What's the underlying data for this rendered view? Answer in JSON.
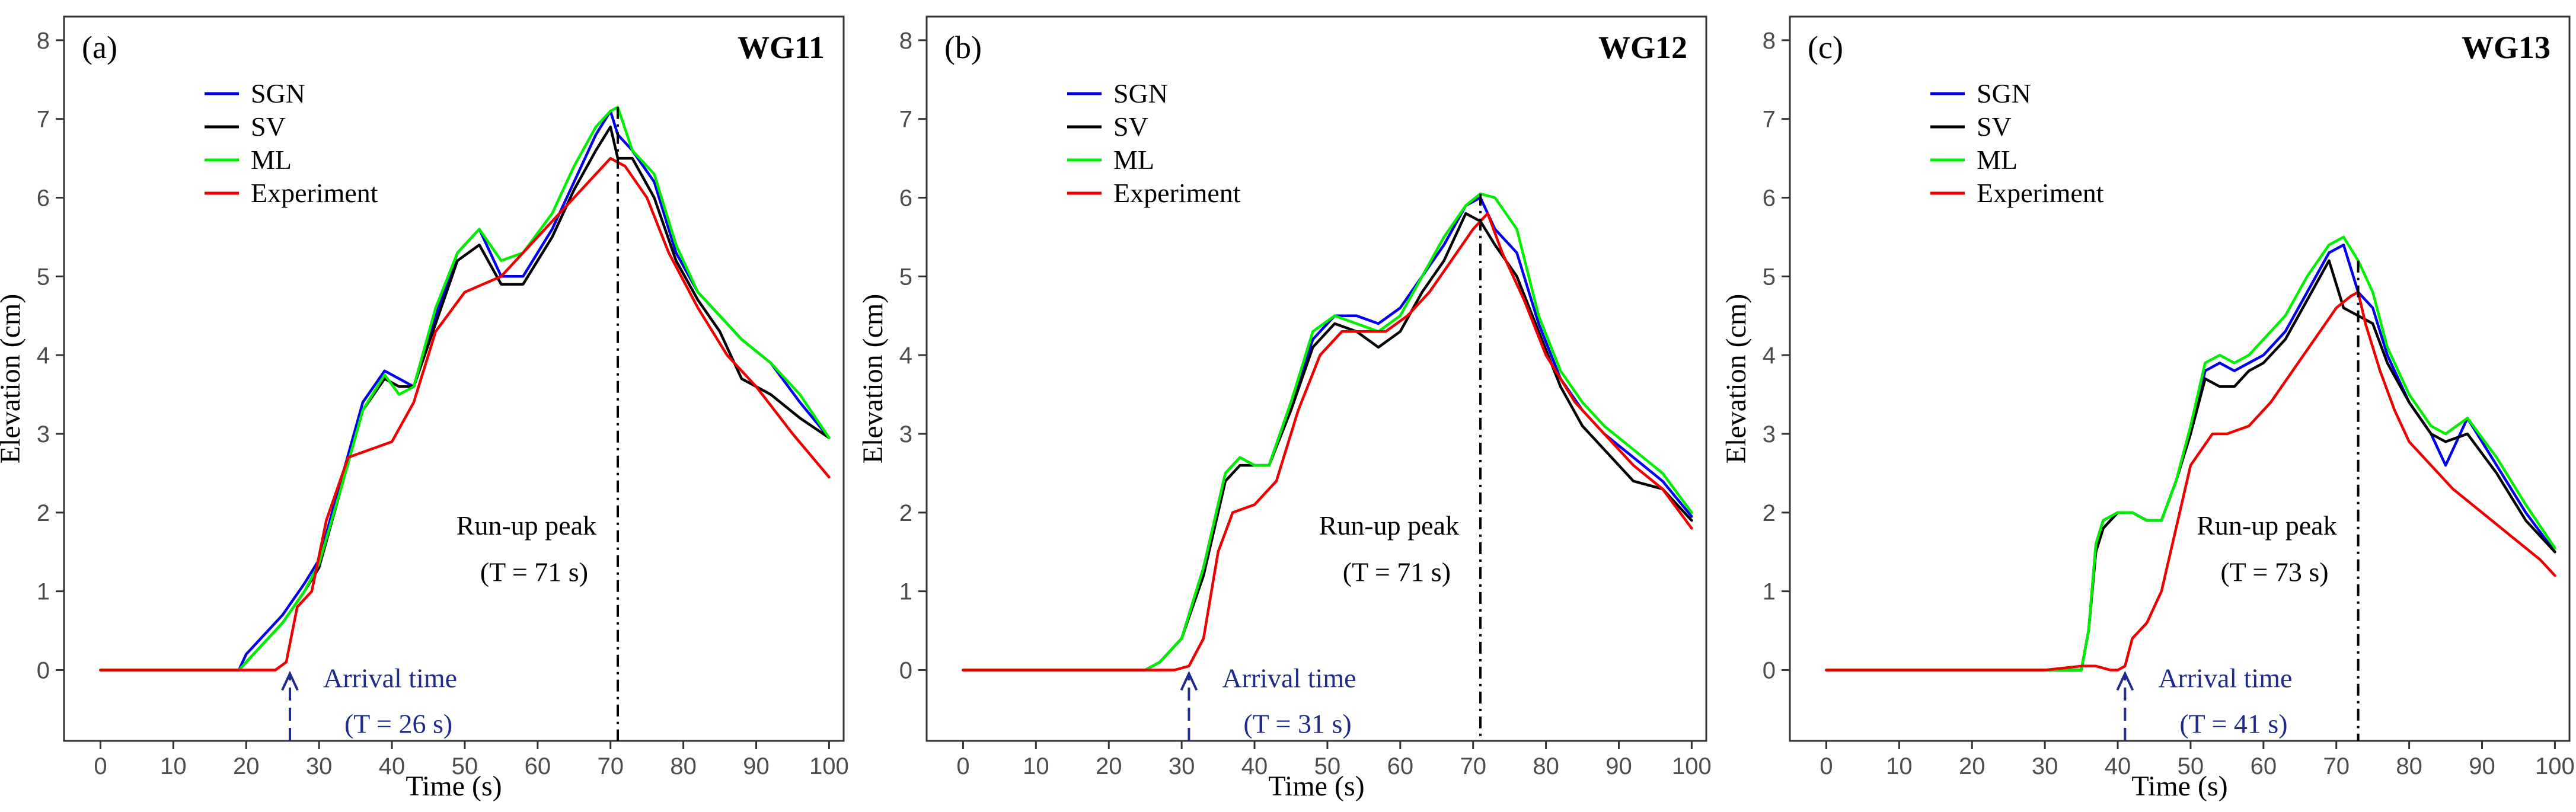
{
  "chart_data": [
    {
      "type": "line",
      "panel_label": "(a)",
      "gauge": "WG11",
      "xlabel": "Time (s)",
      "ylabel": "Elevation (cm)",
      "xlim": [
        -5,
        102
      ],
      "ylim": [
        -0.9,
        8.3
      ],
      "xticks": [
        0,
        10,
        20,
        30,
        40,
        50,
        60,
        70,
        80,
        90,
        100
      ],
      "yticks": [
        0,
        1,
        2,
        3,
        4,
        5,
        6,
        7,
        8
      ],
      "legend": [
        "SGN",
        "SV",
        "ML",
        "Experiment"
      ],
      "runup_text": "Run-up peak",
      "runup_time_text": "(T = 71 s)",
      "runup_t": 71,
      "arrival_text": "Arrival time",
      "arrival_time_text": "(T = 26 s)",
      "arrival_t": 26,
      "series": [
        {
          "name": "SGN",
          "color": "#0000ee",
          "x": [
            0,
            10,
            19,
            20,
            22,
            25,
            28,
            30,
            33,
            36,
            39,
            41,
            43,
            46,
            49,
            52,
            55,
            58,
            62,
            65,
            68,
            70,
            71,
            73,
            76,
            79,
            82,
            85,
            88,
            92,
            96,
            100
          ],
          "y": [
            0,
            0,
            0,
            0.2,
            0.4,
            0.7,
            1.1,
            1.4,
            2.4,
            3.4,
            3.8,
            3.7,
            3.6,
            4.5,
            5.3,
            5.6,
            5.0,
            5.0,
            5.6,
            6.2,
            6.8,
            7.1,
            6.8,
            6.6,
            6.2,
            5.3,
            4.8,
            4.5,
            4.2,
            3.9,
            3.4,
            2.95
          ]
        },
        {
          "name": "SV",
          "color": "#000000",
          "x": [
            0,
            10,
            19,
            20,
            22,
            25,
            28,
            30,
            33,
            36,
            39,
            41,
            43,
            46,
            49,
            52,
            55,
            58,
            62,
            65,
            68,
            70,
            71,
            73,
            76,
            79,
            82,
            85,
            88,
            92,
            96,
            100
          ],
          "y": [
            0,
            0,
            0,
            0.1,
            0.3,
            0.6,
            1.0,
            1.3,
            2.3,
            3.3,
            3.7,
            3.6,
            3.6,
            4.4,
            5.2,
            5.4,
            4.9,
            4.9,
            5.5,
            6.1,
            6.6,
            6.9,
            6.5,
            6.5,
            6.0,
            5.2,
            4.7,
            4.3,
            3.7,
            3.5,
            3.2,
            2.95
          ]
        },
        {
          "name": "ML",
          "color": "#00ee00",
          "x": [
            0,
            10,
            19,
            20,
            22,
            25,
            28,
            30,
            33,
            36,
            39,
            41,
            43,
            46,
            49,
            52,
            55,
            58,
            62,
            65,
            68,
            70,
            71,
            73,
            76,
            79,
            82,
            85,
            88,
            92,
            96,
            100
          ],
          "y": [
            0,
            0,
            0,
            0.1,
            0.3,
            0.6,
            1.0,
            1.35,
            2.3,
            3.3,
            3.75,
            3.5,
            3.6,
            4.6,
            5.3,
            5.6,
            5.2,
            5.3,
            5.8,
            6.4,
            6.9,
            7.1,
            7.15,
            6.6,
            6.3,
            5.4,
            4.8,
            4.5,
            4.2,
            3.9,
            3.5,
            2.95
          ]
        },
        {
          "name": "Experiment",
          "color": "#ee0000",
          "x": [
            0,
            10,
            20,
            24,
            25.5,
            27,
            29,
            31,
            34,
            37,
            40,
            43,
            46,
            50,
            55,
            60,
            65,
            68,
            70,
            72,
            75,
            78,
            82,
            86,
            90,
            95,
            100
          ],
          "y": [
            0,
            0,
            0,
            0,
            0.1,
            0.8,
            1.0,
            1.9,
            2.7,
            2.8,
            2.9,
            3.4,
            4.3,
            4.8,
            5.0,
            5.5,
            6.0,
            6.3,
            6.5,
            6.4,
            6.0,
            5.3,
            4.6,
            4.0,
            3.6,
            3.0,
            2.45
          ]
        }
      ]
    },
    {
      "type": "line",
      "panel_label": "(b)",
      "gauge": "WG12",
      "xlabel": "Time (s)",
      "ylabel": "Elevation (cm)",
      "xlim": [
        -5,
        102
      ],
      "ylim": [
        -0.9,
        8.3
      ],
      "xticks": [
        0,
        10,
        20,
        30,
        40,
        50,
        60,
        70,
        80,
        90,
        100
      ],
      "yticks": [
        0,
        1,
        2,
        3,
        4,
        5,
        6,
        7,
        8
      ],
      "legend": [
        "SGN",
        "SV",
        "ML",
        "Experiment"
      ],
      "runup_text": "Run-up peak",
      "runup_time_text": "(T = 71 s)",
      "runup_t": 71,
      "arrival_text": "Arrival time",
      "arrival_time_text": "(T = 31 s)",
      "arrival_t": 31,
      "series": [
        {
          "name": "SGN",
          "color": "#0000ee",
          "x": [
            0,
            10,
            25,
            27,
            30,
            33,
            36,
            38,
            40,
            42,
            45,
            48,
            51,
            54,
            57,
            60,
            63,
            66,
            69,
            71,
            73,
            76,
            79,
            82,
            85,
            88,
            92,
            96,
            100
          ],
          "y": [
            0,
            0,
            0,
            0.1,
            0.4,
            1.3,
            2.5,
            2.7,
            2.6,
            2.6,
            3.4,
            4.2,
            4.5,
            4.5,
            4.4,
            4.6,
            5.0,
            5.4,
            5.9,
            6.0,
            5.6,
            5.3,
            4.4,
            3.7,
            3.3,
            3.0,
            2.7,
            2.4,
            1.95
          ]
        },
        {
          "name": "SV",
          "color": "#000000",
          "x": [
            0,
            10,
            25,
            27,
            30,
            33,
            36,
            38,
            40,
            42,
            45,
            48,
            51,
            54,
            57,
            60,
            63,
            66,
            69,
            71,
            73,
            76,
            79,
            82,
            85,
            88,
            92,
            96,
            100
          ],
          "y": [
            0,
            0,
            0,
            0.1,
            0.4,
            1.2,
            2.4,
            2.6,
            2.6,
            2.6,
            3.3,
            4.1,
            4.4,
            4.3,
            4.1,
            4.3,
            4.8,
            5.2,
            5.8,
            5.7,
            5.4,
            5.0,
            4.3,
            3.6,
            3.1,
            2.8,
            2.4,
            2.3,
            1.9
          ]
        },
        {
          "name": "ML",
          "color": "#00ee00",
          "x": [
            0,
            10,
            25,
            27,
            30,
            33,
            36,
            38,
            40,
            42,
            45,
            48,
            51,
            54,
            57,
            60,
            63,
            66,
            69,
            71,
            73,
            76,
            79,
            82,
            85,
            88,
            92,
            96,
            100
          ],
          "y": [
            0,
            0,
            0,
            0.1,
            0.4,
            1.3,
            2.5,
            2.7,
            2.6,
            2.6,
            3.4,
            4.3,
            4.5,
            4.4,
            4.3,
            4.5,
            5.0,
            5.5,
            5.9,
            6.05,
            6.0,
            5.6,
            4.5,
            3.8,
            3.4,
            3.1,
            2.8,
            2.5,
            2.0
          ]
        },
        {
          "name": "Experiment",
          "color": "#ee0000",
          "x": [
            0,
            10,
            20,
            29,
            31,
            33,
            35,
            37,
            40,
            43,
            46,
            49,
            52,
            55,
            58,
            61,
            64,
            67,
            70,
            72,
            74,
            77,
            80,
            84,
            88,
            92,
            96,
            100
          ],
          "y": [
            0,
            0,
            0,
            0,
            0.05,
            0.4,
            1.5,
            2.0,
            2.1,
            2.4,
            3.3,
            4.0,
            4.3,
            4.3,
            4.3,
            4.5,
            4.8,
            5.2,
            5.6,
            5.8,
            5.3,
            4.7,
            4.0,
            3.4,
            3.0,
            2.6,
            2.3,
            1.8
          ]
        }
      ]
    },
    {
      "type": "line",
      "panel_label": "(c)",
      "gauge": "WG13",
      "xlabel": "Time (s)",
      "ylabel": "Elevation (cm)",
      "xlim": [
        -5,
        102
      ],
      "ylim": [
        -0.9,
        8.3
      ],
      "xticks": [
        0,
        10,
        20,
        30,
        40,
        50,
        60,
        70,
        80,
        90,
        100
      ],
      "yticks": [
        0,
        1,
        2,
        3,
        4,
        5,
        6,
        7,
        8
      ],
      "legend": [
        "SGN",
        "SV",
        "ML",
        "Experiment"
      ],
      "runup_text": "Run-up peak",
      "runup_time_text": "(T = 73 s)",
      "runup_t": 73,
      "arrival_text": "Arrival time",
      "arrival_time_text": "(T = 41 s)",
      "arrival_t": 41,
      "series": [
        {
          "name": "SGN",
          "color": "#0000ee",
          "x": [
            0,
            10,
            20,
            35,
            36,
            37,
            38,
            40,
            42,
            44,
            46,
            48,
            50,
            52,
            54,
            56,
            58,
            60,
            63,
            66,
            69,
            71,
            73,
            75,
            77,
            80,
            83,
            85,
            88,
            92,
            96,
            100
          ],
          "y": [
            0,
            0,
            0,
            0,
            0.5,
            1.6,
            1.9,
            2.0,
            2.0,
            1.9,
            1.9,
            2.4,
            3.0,
            3.8,
            3.9,
            3.8,
            3.9,
            4.0,
            4.3,
            4.8,
            5.3,
            5.4,
            4.8,
            4.6,
            4.0,
            3.4,
            3.0,
            2.6,
            3.2,
            2.6,
            2.0,
            1.5
          ]
        },
        {
          "name": "SV",
          "color": "#000000",
          "x": [
            0,
            10,
            20,
            35,
            36,
            37,
            38,
            40,
            42,
            44,
            46,
            48,
            50,
            52,
            54,
            56,
            58,
            60,
            63,
            66,
            69,
            71,
            73,
            75,
            77,
            80,
            83,
            85,
            88,
            92,
            96,
            100
          ],
          "y": [
            0,
            0,
            0,
            0,
            0.5,
            1.5,
            1.8,
            2.0,
            2.0,
            1.9,
            1.9,
            2.4,
            3.0,
            3.7,
            3.6,
            3.6,
            3.8,
            3.9,
            4.2,
            4.7,
            5.2,
            4.6,
            4.5,
            4.4,
            3.9,
            3.4,
            3.0,
            2.9,
            3.0,
            2.5,
            1.9,
            1.5
          ]
        },
        {
          "name": "ML",
          "color": "#00ee00",
          "x": [
            0,
            10,
            20,
            35,
            36,
            37,
            38,
            40,
            42,
            44,
            46,
            48,
            50,
            52,
            54,
            56,
            58,
            60,
            63,
            66,
            69,
            71,
            73,
            75,
            77,
            80,
            83,
            85,
            88,
            92,
            96,
            100
          ],
          "y": [
            0,
            0,
            0,
            0,
            0.5,
            1.6,
            1.9,
            2.0,
            2.0,
            1.9,
            1.9,
            2.4,
            3.1,
            3.9,
            4.0,
            3.9,
            4.0,
            4.2,
            4.5,
            5.0,
            5.4,
            5.5,
            5.2,
            4.8,
            4.1,
            3.5,
            3.1,
            3.0,
            3.2,
            2.7,
            2.1,
            1.55
          ]
        },
        {
          "name": "Experiment",
          "color": "#ee0000",
          "x": [
            0,
            10,
            20,
            30,
            35,
            37,
            39,
            40,
            41,
            42,
            44,
            46,
            48,
            50,
            53,
            55,
            58,
            61,
            64,
            67,
            70,
            72,
            73,
            74,
            76,
            78,
            80,
            83,
            86,
            90,
            94,
            98,
            100
          ],
          "y": [
            0,
            0,
            0,
            0,
            0.05,
            0.05,
            0.0,
            0.0,
            0.05,
            0.4,
            0.6,
            1.0,
            1.8,
            2.6,
            3.0,
            3.0,
            3.1,
            3.4,
            3.8,
            4.2,
            4.6,
            4.75,
            4.8,
            4.4,
            3.8,
            3.3,
            2.9,
            2.6,
            2.3,
            2.0,
            1.7,
            1.4,
            1.2
          ]
        }
      ]
    }
  ]
}
